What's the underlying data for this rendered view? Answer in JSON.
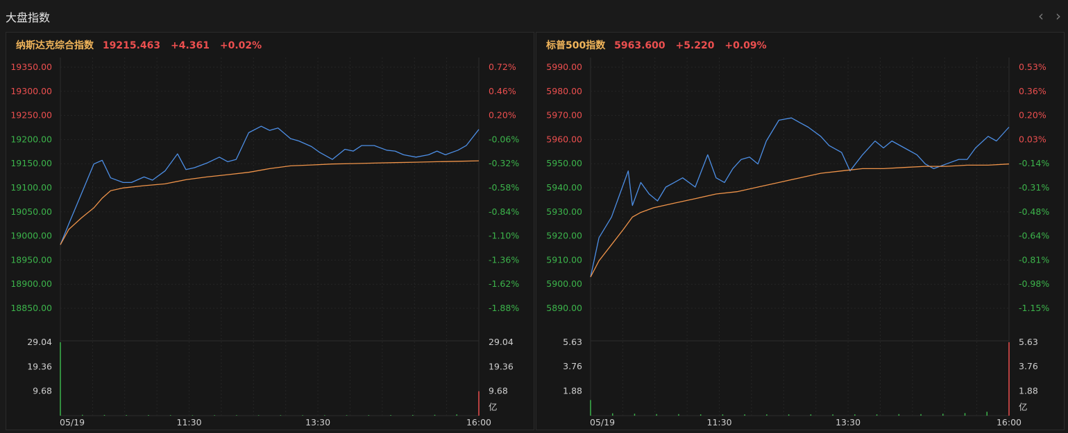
{
  "page": {
    "title": "大盘指数"
  },
  "nav": {
    "prev": "‹",
    "next": "›"
  },
  "colors": {
    "price_line": "#4d8fe6",
    "avg_line": "#f0944a",
    "up": "#ec4f4f",
    "down": "#3cb44b",
    "name": "#f0b45a",
    "grid": "#262626",
    "area_top": "#1d2f4f",
    "area_bottom": "#141a24"
  },
  "panels": [
    {
      "name": "纳斯达克综合指数",
      "price": "19215.463",
      "change": "+4.361",
      "change_pct": "+0.02%",
      "volume_unit": "亿"
    },
    {
      "name": "标普500指数",
      "price": "5963.600",
      "change": "+5.220",
      "change_pct": "+0.09%",
      "volume_unit": "亿"
    }
  ],
  "chart_data": [
    {
      "type": "line",
      "title": "纳斯达克综合指数",
      "x_ticks": [
        "05/19",
        "11:30",
        "13:30",
        "16:00"
      ],
      "x_tick_positions": [
        0.0,
        0.3077,
        0.6154,
        1.0
      ],
      "y_ticks_left": [
        "19350.00",
        "19300.00",
        "19250.00",
        "19200.00",
        "19150.00",
        "19100.00",
        "19050.00",
        "19000.00",
        "18950.00",
        "18900.00",
        "18850.00"
      ],
      "y_ticks_right": [
        "0.72%",
        "0.46%",
        "0.20%",
        "-0.06%",
        "-0.32%",
        "-0.58%",
        "-0.84%",
        "-1.10%",
        "-1.36%",
        "-1.62%",
        "-1.88%"
      ],
      "ylim": [
        18800,
        19350
      ],
      "reference_price": 19211.1,
      "volume_ticks": [
        "29.04",
        "19.36",
        "9.68"
      ],
      "volume_max": 29.04,
      "series": [
        {
          "x": [
            0,
            0.02,
            0.05,
            0.08,
            0.1,
            0.12,
            0.15,
            0.17,
            0.2,
            0.22,
            0.25,
            0.28,
            0.3,
            0.32,
            0.35,
            0.38,
            0.4,
            0.42,
            0.45,
            0.48,
            0.5,
            0.52,
            0.55,
            0.57,
            0.6,
            0.62,
            0.65,
            0.68,
            0.7,
            0.72,
            0.75,
            0.78,
            0.8,
            0.82,
            0.85,
            0.88,
            0.9,
            0.92,
            0.95,
            0.97,
            1.0
          ],
          "values": [
            18965,
            19010,
            19075,
            19140,
            19148,
            19110,
            19100,
            19100,
            19112,
            19105,
            19125,
            19162,
            19128,
            19132,
            19142,
            19155,
            19145,
            19150,
            19208,
            19222,
            19213,
            19218,
            19195,
            19190,
            19178,
            19165,
            19150,
            19172,
            19168,
            19180,
            19180,
            19170,
            19168,
            19160,
            19155,
            19160,
            19168,
            19160,
            19170,
            19180,
            19215
          ]
        },
        {
          "x": [
            0,
            0.02,
            0.05,
            0.08,
            0.1,
            0.12,
            0.15,
            0.2,
            0.25,
            0.3,
            0.35,
            0.4,
            0.45,
            0.5,
            0.55,
            0.6,
            0.65,
            0.7,
            0.75,
            0.8,
            0.85,
            0.9,
            0.95,
            1.0
          ],
          "values": [
            18965,
            18998,
            19023,
            19045,
            19066,
            19082,
            19088,
            19093,
            19097,
            19106,
            19112,
            19117,
            19122,
            19130,
            19136,
            19138,
            19140,
            19141,
            19142,
            19143,
            19144,
            19145,
            19146,
            19147
          ]
        }
      ],
      "volume_values": [
        29.04,
        0.35,
        0.3,
        0.25,
        0.25,
        0.22,
        0.2,
        0.2,
        0.2,
        0.18,
        0.2,
        0.2,
        0.2,
        0.2,
        0.22,
        0.25,
        0.3,
        0.35,
        0.5,
        9.68
      ]
    },
    {
      "type": "line",
      "title": "标普500指数",
      "x_ticks": [
        "05/19",
        "11:30",
        "13:30",
        "16:00"
      ],
      "x_tick_positions": [
        0.0,
        0.3077,
        0.6154,
        1.0
      ],
      "y_ticks_left": [
        "5990.00",
        "5980.00",
        "5970.00",
        "5960.00",
        "5950.00",
        "5940.00",
        "5930.00",
        "5920.00",
        "5910.00",
        "5900.00",
        "5890.00"
      ],
      "y_ticks_right": [
        "0.53%",
        "0.36%",
        "0.20%",
        "0.03%",
        "-0.14%",
        "-0.31%",
        "-0.48%",
        "-0.64%",
        "-0.81%",
        "-0.98%",
        "-1.15%"
      ],
      "ylim": [
        5880,
        5990
      ],
      "reference_price": 5958.4,
      "volume_ticks": [
        "5.63",
        "3.76",
        "1.88"
      ],
      "volume_max": 5.63,
      "series": [
        {
          "x": [
            0,
            0.02,
            0.05,
            0.07,
            0.09,
            0.1,
            0.12,
            0.14,
            0.16,
            0.18,
            0.2,
            0.22,
            0.25,
            0.28,
            0.3,
            0.32,
            0.34,
            0.36,
            0.38,
            0.4,
            0.42,
            0.45,
            0.48,
            0.5,
            0.52,
            0.55,
            0.57,
            0.6,
            0.62,
            0.65,
            0.68,
            0.7,
            0.72,
            0.75,
            0.78,
            0.8,
            0.82,
            0.85,
            0.88,
            0.9,
            0.92,
            0.95,
            0.97,
            1.0
          ],
          "values": [
            5899,
            5916,
            5925,
            5935,
            5945,
            5930,
            5940,
            5935,
            5932,
            5938,
            5940,
            5942,
            5938,
            5952,
            5942,
            5940,
            5946,
            5950,
            5951,
            5948,
            5958,
            5967,
            5968,
            5966,
            5964,
            5960,
            5956,
            5953,
            5945,
            5952,
            5958,
            5955,
            5958,
            5955,
            5952,
            5948,
            5946,
            5948,
            5950,
            5950,
            5955,
            5960,
            5958,
            5964
          ]
        },
        {
          "x": [
            0,
            0.02,
            0.05,
            0.08,
            0.1,
            0.12,
            0.15,
            0.2,
            0.25,
            0.3,
            0.35,
            0.4,
            0.45,
            0.5,
            0.55,
            0.6,
            0.65,
            0.7,
            0.75,
            0.8,
            0.85,
            0.9,
            0.95,
            1.0
          ],
          "values": [
            5899,
            5906,
            5913,
            5920,
            5925,
            5927,
            5929,
            5931,
            5933,
            5935,
            5936,
            5938,
            5940,
            5942,
            5944,
            5945,
            5946,
            5946,
            5946.5,
            5947,
            5947,
            5947.5,
            5947.5,
            5948
          ]
        }
      ],
      "volume_values": [
        1.2,
        0.18,
        0.15,
        0.12,
        0.12,
        0.1,
        0.1,
        0.1,
        0.1,
        0.1,
        0.1,
        0.1,
        0.1,
        0.1,
        0.12,
        0.12,
        0.15,
        0.2,
        0.3,
        5.63
      ]
    }
  ]
}
